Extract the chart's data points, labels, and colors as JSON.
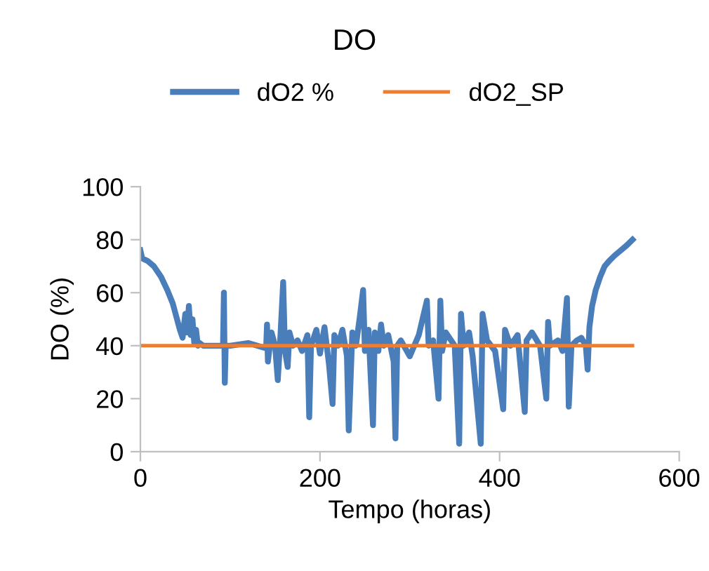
{
  "chart_data": {
    "type": "line",
    "title": "DO",
    "xlabel": "Tempo (horas)",
    "ylabel": "DO (%)",
    "xlim": [
      0,
      600
    ],
    "xticks": [
      0,
      200,
      400,
      600
    ],
    "ylim": [
      0,
      100
    ],
    "yticks": [
      0,
      20,
      40,
      60,
      80,
      100
    ],
    "grid": false,
    "legend": "top",
    "line_style": "solid",
    "marker": "none",
    "series": [
      {
        "name": "dO2 %",
        "color": "#4a7ebb",
        "x": [
          0,
          2,
          8,
          15,
          23,
          30,
          36,
          40,
          44,
          47,
          50,
          52,
          54,
          56,
          58,
          60,
          62,
          64,
          66,
          70,
          80,
          92,
          93,
          94,
          95,
          96,
          100,
          120,
          140,
          141,
          142,
          146,
          150,
          153,
          156,
          159,
          161,
          164,
          166,
          170,
          175,
          180,
          186,
          188,
          190,
          196,
          200,
          205,
          210,
          214,
          216,
          220,
          225,
          230,
          232,
          236,
          240,
          244,
          248,
          250,
          254,
          259,
          261,
          265,
          268,
          271,
          276,
          282,
          284,
          286,
          290,
          300,
          310,
          319,
          321,
          326,
          332,
          334,
          336,
          340,
          350,
          355,
          357,
          360,
          366,
          370,
          379,
          381,
          386,
          395,
          404,
          406,
          412,
          420,
          428,
          430,
          436,
          445,
          452,
          454,
          456,
          465,
          470,
          475,
          477,
          480,
          486,
          491,
          496,
          498,
          500,
          503,
          507,
          512,
          517,
          522,
          528,
          535,
          542,
          548
        ],
        "values": [
          76,
          73,
          72,
          70,
          66,
          61,
          56,
          51,
          46,
          43,
          52,
          45,
          55,
          44,
          50,
          41,
          46,
          40,
          41,
          40,
          40,
          40,
          60,
          26,
          40,
          40,
          40,
          41,
          39,
          48,
          34,
          45,
          40,
          27,
          44,
          64,
          38,
          32,
          45,
          40,
          42,
          38,
          44,
          13,
          40,
          46,
          37,
          47,
          33,
          18,
          44,
          40,
          46,
          36,
          8,
          45,
          40,
          50,
          61,
          38,
          46,
          10,
          45,
          38,
          48,
          40,
          44,
          34,
          5,
          40,
          42,
          36,
          44,
          57,
          40,
          42,
          20,
          57,
          38,
          45,
          40,
          3,
          52,
          40,
          45,
          36,
          3,
          52,
          42,
          38,
          16,
          46,
          40,
          44,
          15,
          42,
          45,
          40,
          20,
          49,
          40,
          42,
          38,
          58,
          17,
          40,
          42,
          43,
          40,
          31,
          47,
          55,
          61,
          66,
          70,
          72,
          74,
          76,
          78,
          80
        ]
      },
      {
        "name": "dO2_SP",
        "color": "#ed7d31",
        "x": [
          0,
          548
        ],
        "values": [
          40,
          40
        ]
      }
    ]
  }
}
